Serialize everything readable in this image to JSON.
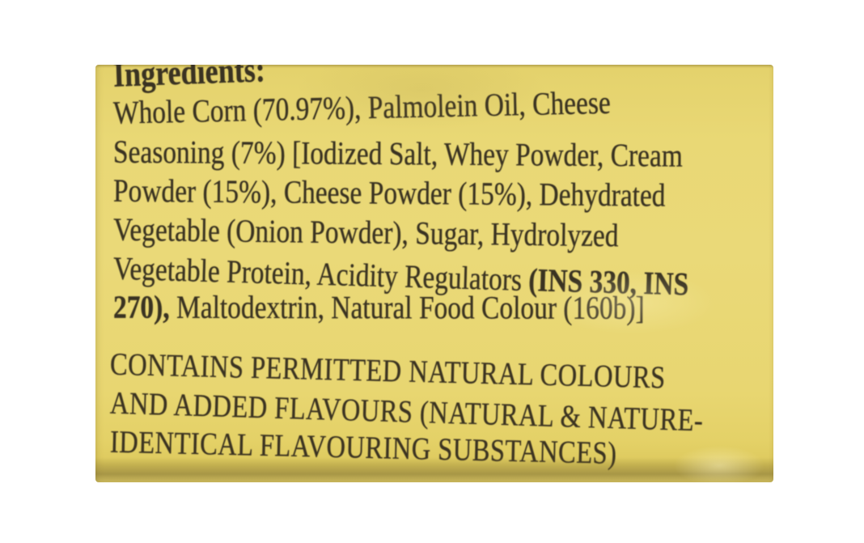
{
  "colors": {
    "label_background": "#e8d671",
    "label_bottom_shade": "#8a7a35",
    "text": "#3a3322",
    "page_background": "#ffffff"
  },
  "ingredients": {
    "heading": "Ingredients:",
    "lines": [
      "Whole Corn (70.97%), Palmolein Oil, Cheese",
      "Seasoning (7%) [Iodized Salt, Whey Powder, Cream",
      "Powder (15%), Cheese Powder (15%), Dehydrated",
      "Vegetable (Onion Powder), Sugar, Hydrolyzed"
    ],
    "line5": {
      "normal": "Vegetable Protein, Acidity Regulators ",
      "bold": "(INS 330, INS"
    },
    "line6": {
      "bold": "270),",
      "normal": " Maltodextrin, Natural Food Colour (160b)]"
    }
  },
  "allergen_statement": {
    "lines": [
      "CONTAINS PERMITTED NATURAL COLOURS",
      "AND ADDED FLAVOURS (NATURAL & NATURE-",
      "IDENTICAL FLAVOURING SUBSTANCES)"
    ]
  }
}
